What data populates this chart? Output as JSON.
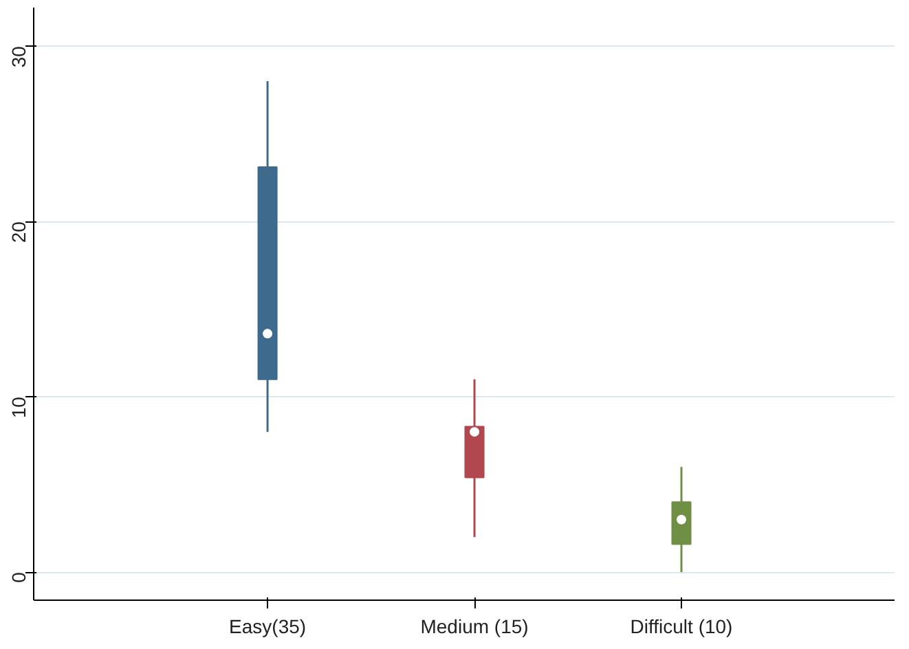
{
  "chart_data": {
    "type": "box",
    "categories": [
      "Easy(35)",
      "Medium (15)",
      "Difficult (10)"
    ],
    "colors": [
      "#3e6a8e",
      "#b1484f",
      "#6f8f45"
    ],
    "boxes": [
      {
        "low": 8,
        "q1": 11,
        "median": 13.6,
        "q3": 23.1,
        "high": 28
      },
      {
        "low": 2,
        "q1": 5.4,
        "median": 8,
        "q3": 8.3,
        "high": 11
      },
      {
        "low": 0,
        "q1": 1.6,
        "median": 3,
        "q3": 4,
        "high": 6
      }
    ],
    "ylim": [
      -1.6,
      32.2
    ],
    "yticks": [
      0,
      10,
      20,
      30
    ],
    "grid": "y"
  }
}
